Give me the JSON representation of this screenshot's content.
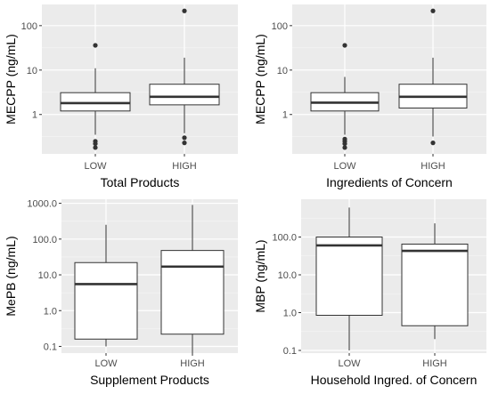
{
  "chart_data": [
    {
      "type": "box",
      "xlabel": "Total Products",
      "ylabel": "MECPP (ng/mL)",
      "yscale": "log",
      "ylim": [
        0.13,
        300
      ],
      "yticks": [
        1,
        10,
        100
      ],
      "ytick_labels": [
        "1",
        "10",
        "100"
      ],
      "categories": [
        "LOW",
        "HIGH"
      ],
      "boxes": [
        {
          "name": "LOW",
          "q1": 1.2,
          "median": 1.8,
          "q3": 3.1,
          "whisker_low": 0.35,
          "whisker_high": 11,
          "outliers": [
            36,
            0.25,
            0.22,
            0.18
          ]
        },
        {
          "name": "HIGH",
          "q1": 1.65,
          "median": 2.5,
          "q3": 4.8,
          "whisker_low": 0.38,
          "whisker_high": 19,
          "outliers": [
            215,
            0.3,
            0.23
          ]
        }
      ],
      "grid": true
    },
    {
      "type": "box",
      "xlabel": "Ingredients of Concern",
      "ylabel": "MECPP (ng/mL)",
      "yscale": "log",
      "ylim": [
        0.13,
        300
      ],
      "yticks": [
        1,
        10,
        100
      ],
      "ytick_labels": [
        "1",
        "10",
        "100"
      ],
      "categories": [
        "LOW",
        "HIGH"
      ],
      "boxes": [
        {
          "name": "LOW",
          "q1": 1.2,
          "median": 1.85,
          "q3": 3.1,
          "whisker_low": 0.35,
          "whisker_high": 7,
          "outliers": [
            36,
            0.28,
            0.25,
            0.22,
            0.18
          ]
        },
        {
          "name": "HIGH",
          "q1": 1.4,
          "median": 2.5,
          "q3": 4.8,
          "whisker_low": 0.32,
          "whisker_high": 19,
          "outliers": [
            215,
            0.23
          ]
        }
      ],
      "grid": true
    },
    {
      "type": "box",
      "xlabel": "Supplement Products",
      "ylabel": "MePB (ng/mL)",
      "yscale": "log",
      "ylim": [
        0.065,
        1300
      ],
      "yticks": [
        0.1,
        1,
        10,
        100,
        1000
      ],
      "ytick_labels": [
        "0.1",
        "1.0",
        "10.0",
        "100.0",
        "1000.0"
      ],
      "categories": [
        "LOW",
        "HIGH"
      ],
      "boxes": [
        {
          "name": "LOW",
          "q1": 0.16,
          "median": 5.5,
          "q3": 22,
          "whisker_low": 0.1,
          "whisker_high": 250,
          "outliers": []
        },
        {
          "name": "HIGH",
          "q1": 0.22,
          "median": 17,
          "q3": 48,
          "whisker_low": 0.065,
          "whisker_high": 900,
          "outliers": []
        }
      ],
      "grid": true
    },
    {
      "type": "box",
      "xlabel": "Household Ingred. of Concern",
      "ylabel": "MBP (ng/mL)",
      "yscale": "log",
      "ylim": [
        0.085,
        1000
      ],
      "yticks": [
        0.1,
        1,
        10,
        100
      ],
      "ytick_labels": [
        "0.1",
        "1.0",
        "10.0",
        "100.0"
      ],
      "categories": [
        "LOW",
        "HIGH"
      ],
      "boxes": [
        {
          "name": "LOW",
          "q1": 0.85,
          "median": 60,
          "q3": 100,
          "whisker_low": 0.1,
          "whisker_high": 600,
          "outliers": []
        },
        {
          "name": "HIGH",
          "q1": 0.45,
          "median": 43,
          "q3": 65,
          "whisker_low": 0.2,
          "whisker_high": 230,
          "outliers": []
        }
      ],
      "grid": true
    }
  ]
}
